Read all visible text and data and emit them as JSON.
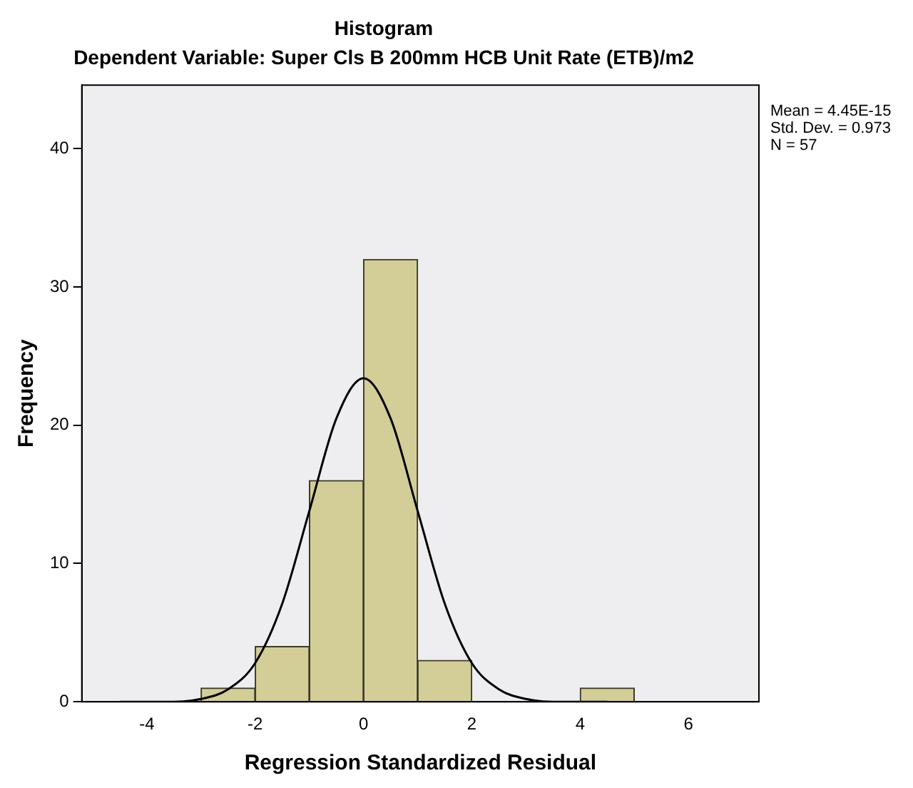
{
  "chart_data": {
    "type": "histogram",
    "title": "Histogram",
    "subtitle": "Dependent Variable: Super Cls B 200mm HCB Unit Rate (ETB)/m2",
    "xlabel": "Regression Standardized Residual",
    "ylabel": "Frequency",
    "bins": [
      -3,
      -2,
      -1,
      0,
      1,
      2,
      3,
      4,
      5
    ],
    "values": [
      1,
      4,
      16,
      32,
      3,
      0,
      0,
      1
    ],
    "color": "#d3ce97",
    "series": [
      {
        "type": "line",
        "color": "#000000",
        "x": [
          -4.5,
          -4,
          -3.5,
          -3,
          -2.5,
          -2,
          -1.5,
          -1,
          -0.5,
          0,
          0.5,
          1,
          1.5,
          2,
          2.5,
          3,
          3.5,
          4,
          4.5
        ],
        "values": [
          0,
          0,
          0,
          0.2,
          0.9,
          2.8,
          7.1,
          13.8,
          20.5,
          23.4,
          20.5,
          13.8,
          7.1,
          2.8,
          0.9,
          0.2,
          0,
          0,
          0
        ]
      }
    ],
    "xlim": [
      -5.2,
      7.3
    ],
    "xticks": [
      -4,
      -2,
      0,
      2,
      4,
      6
    ],
    "ylim": [
      0,
      44.6
    ],
    "yticks": [
      0,
      10,
      20,
      30,
      40
    ],
    "grid": false,
    "legend": false,
    "marker": "none",
    "annotations": [
      "Mean = 4.45E-15",
      "Std. Dev. = 0.973",
      "N = 57"
    ]
  }
}
